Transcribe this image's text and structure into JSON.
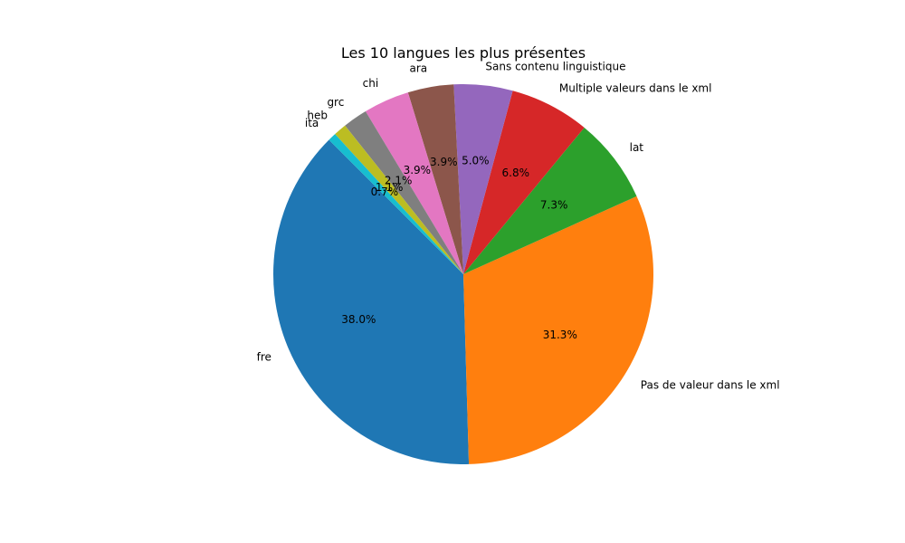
{
  "chart_data": {
    "type": "pie",
    "title": "Les 10 langues les plus présentes",
    "slices": [
      {
        "label": "fre",
        "value": 38.0,
        "pct_label": "38.0%",
        "color": "#1f77b4"
      },
      {
        "label": "Pas de valeur dans le xml",
        "value": 31.3,
        "pct_label": "31.3%",
        "color": "#ff7f0e"
      },
      {
        "label": "lat",
        "value": 7.3,
        "pct_label": "7.3%",
        "color": "#2ca02c"
      },
      {
        "label": "Multiple valeurs dans le xml",
        "value": 6.8,
        "pct_label": "6.8%",
        "color": "#d62728"
      },
      {
        "label": "Sans contenu linguistique",
        "value": 5.0,
        "pct_label": "5.0%",
        "color": "#9467bd"
      },
      {
        "label": "ara",
        "value": 3.9,
        "pct_label": "3.9%",
        "color": "#8c564b"
      },
      {
        "label": "chi",
        "value": 3.9,
        "pct_label": "3.9%",
        "color": "#e377c2"
      },
      {
        "label": "grc",
        "value": 2.1,
        "pct_label": "2.1%",
        "color": "#7f7f7f"
      },
      {
        "label": "heb",
        "value": 1.1,
        "pct_label": "1.1%",
        "color": "#bcbd22"
      },
      {
        "label": "ita",
        "value": 0.7,
        "pct_label": "0.7%",
        "color": "#17becf"
      }
    ],
    "start_angle_deg": 135,
    "direction": "counterclockwise"
  }
}
